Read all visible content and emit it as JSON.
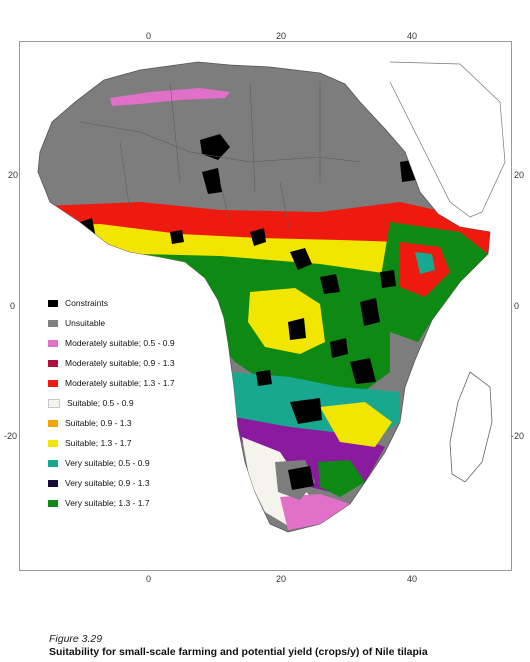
{
  "axes": {
    "longitude_ticks": [
      "0",
      "20",
      "40"
    ],
    "latitude_ticks": [
      "20",
      "0",
      "-20"
    ]
  },
  "legend": [
    {
      "label": "Constraints",
      "color": "#000000"
    },
    {
      "label": "Unsuitable",
      "color": "#808080"
    },
    {
      "label": "Moderately suitable; 0.5 - 0.9",
      "color": "#e070c8"
    },
    {
      "label": "Moderately suitable; 0.9 - 1.3",
      "color": "#b0103a"
    },
    {
      "label": "Moderately suitable; 1.3 - 1.7",
      "color": "#ee1a10"
    },
    {
      "label": "Suitable; 0.5 - 0.9",
      "color": "#f4f4ec"
    },
    {
      "label": "Suitable; 0.9 - 1.3",
      "color": "#f5a400"
    },
    {
      "label": "Suitable; 1.3 - 1.7",
      "color": "#f2e600"
    },
    {
      "label": "Very suitable; 0.5 - 0.9",
      "color": "#18a890"
    },
    {
      "label": "Very suitable; 0.9 - 1.3",
      "color": "#1a0a3c"
    },
    {
      "label": "Very suitable; 1.3 - 1.7",
      "color": "#0e8a14"
    }
  ],
  "colors": {
    "unsuitable": "#7d7d7d",
    "border_lines": "#5a5a5a",
    "outline": "#555555",
    "purple_region": "#8a1a9e"
  },
  "caption": {
    "figure_number": "Figure 3.29",
    "title": "Suitability for small-scale farming and potential yield (crops/y) of Nile tilapia"
  }
}
